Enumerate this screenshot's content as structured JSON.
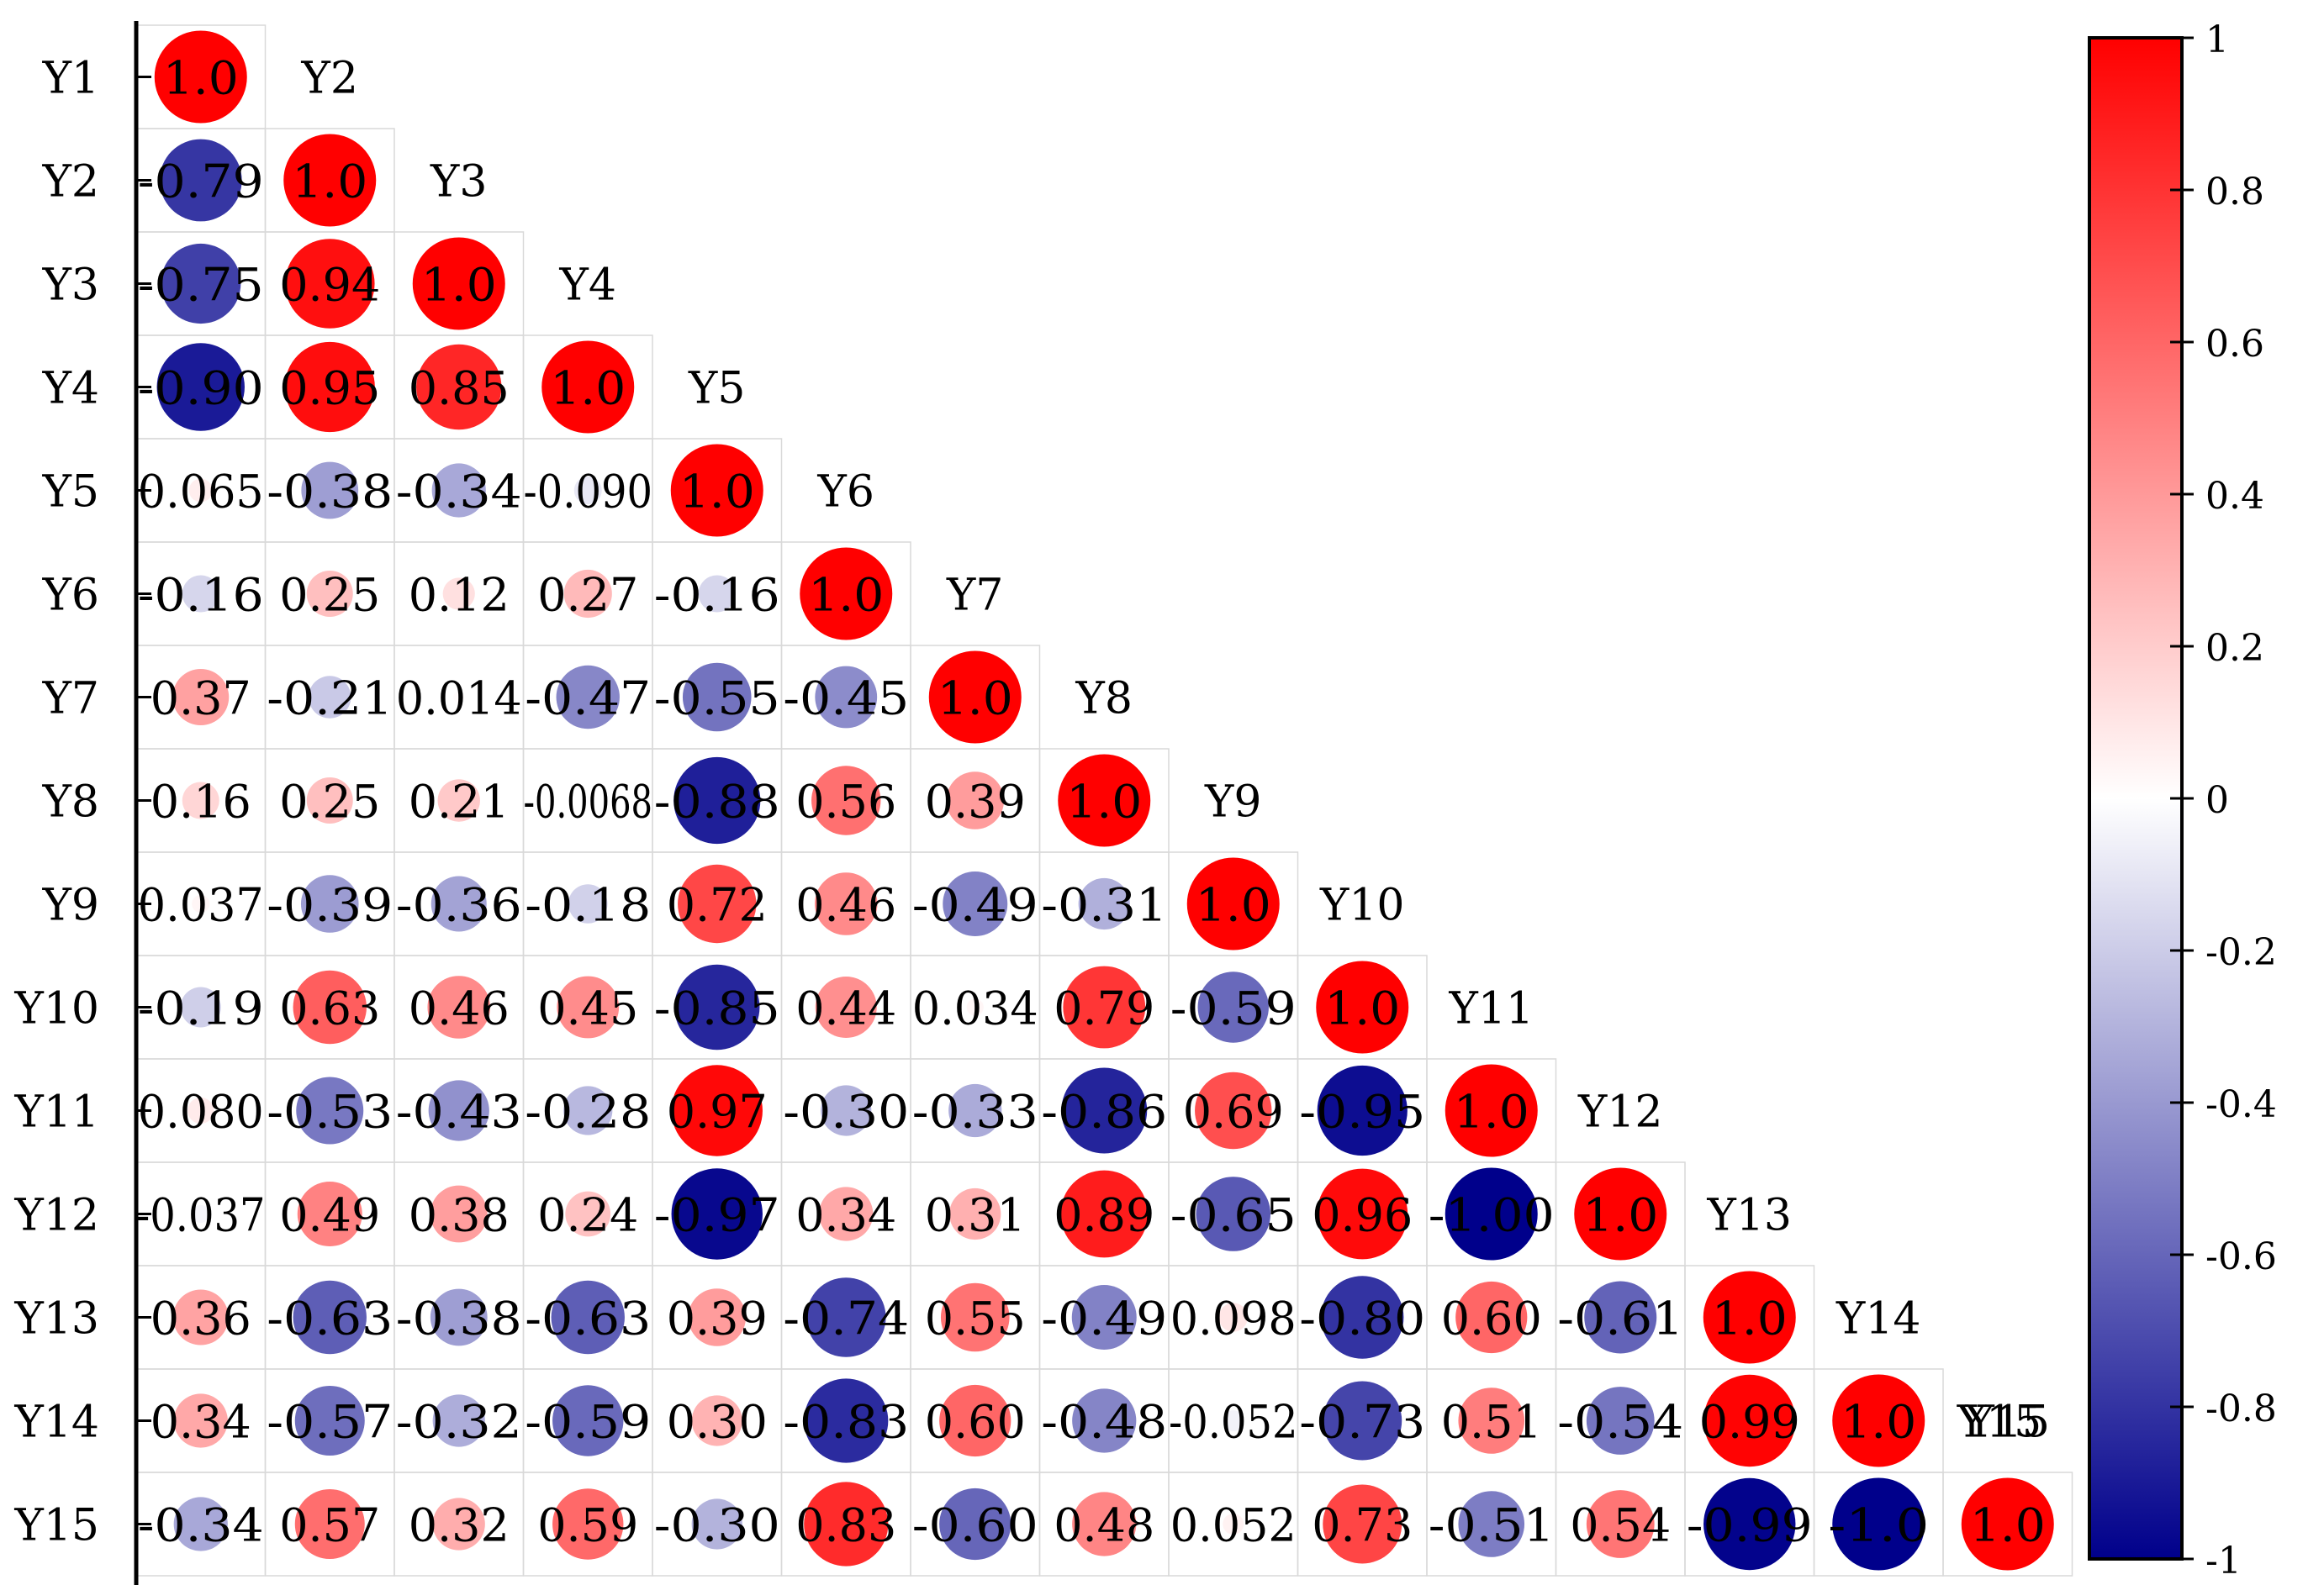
{
  "chart_data": {
    "type": "heatmap",
    "title": "",
    "labels": [
      "Y1",
      "Y2",
      "Y3",
      "Y4",
      "Y5",
      "Y6",
      "Y7",
      "Y8",
      "Y9",
      "Y10",
      "Y11",
      "Y12",
      "Y13",
      "Y14",
      "Y15"
    ],
    "matrix_lower": [
      [
        "1.0"
      ],
      [
        "-0.79",
        "1.0"
      ],
      [
        "-0.75",
        "0.94",
        "1.0"
      ],
      [
        "-0.90",
        "0.95",
        "0.85",
        "1.0"
      ],
      [
        "0.065",
        "-0.38",
        "-0.34",
        "-0.090",
        "1.0"
      ],
      [
        "-0.16",
        "0.25",
        "0.12",
        "0.27",
        "-0.16",
        "1.0"
      ],
      [
        "0.37",
        "-0.21",
        "0.014",
        "-0.47",
        "-0.55",
        "-0.45",
        "1.0"
      ],
      [
        "0.16",
        "0.25",
        "0.21",
        "-0.0068",
        "-0.88",
        "0.56",
        "0.39",
        "1.0"
      ],
      [
        "0.037",
        "-0.39",
        "-0.36",
        "-0.18",
        "0.72",
        "0.46",
        "-0.49",
        "-0.31",
        "1.0"
      ],
      [
        "-0.19",
        "0.63",
        "0.46",
        "0.45",
        "-0.85",
        "0.44",
        "0.034",
        "0.79",
        "-0.59",
        "1.0"
      ],
      [
        "0.080",
        "-0.53",
        "-0.43",
        "-0.28",
        "0.97",
        "-0.30",
        "-0.33",
        "-0.86",
        "0.69",
        "-0.95",
        "1.0"
      ],
      [
        "-0.037",
        "0.49",
        "0.38",
        "0.24",
        "-0.97",
        "0.34",
        "0.31",
        "0.89",
        "-0.65",
        "0.96",
        "-1.00",
        "1.0"
      ],
      [
        "0.36",
        "-0.63",
        "-0.38",
        "-0.63",
        "0.39",
        "-0.74",
        "0.55",
        "-0.49",
        "0.098",
        "-0.80",
        "0.60",
        "-0.61",
        "1.0"
      ],
      [
        "0.34",
        "-0.57",
        "-0.32",
        "-0.59",
        "0.30",
        "-0.83",
        "0.60",
        "-0.48",
        "-0.052",
        "-0.73",
        "0.51",
        "-0.54",
        "0.99",
        "1.0"
      ],
      [
        "-0.34",
        "0.57",
        "0.32",
        "0.59",
        "-0.30",
        "0.83",
        "-0.60",
        "0.48",
        "0.052",
        "0.73",
        "-0.51",
        "0.54",
        "-0.99",
        "-1.0",
        "1.0"
      ]
    ],
    "colorbar": {
      "range": [
        -1,
        1
      ],
      "ticks": [
        "1",
        "0.8",
        "0.6",
        "0.4",
        "0.2",
        "0",
        "-0.2",
        "-0.4",
        "-0.6",
        "-0.8",
        "-1"
      ],
      "colors": {
        "low": "#00008b",
        "mid": "#ffffff",
        "high": "#ff0000"
      }
    }
  }
}
